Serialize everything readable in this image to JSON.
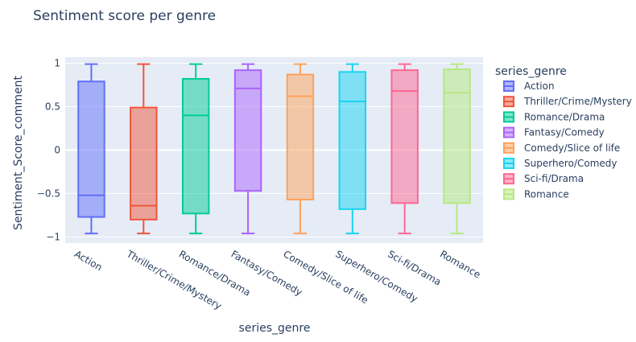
{
  "chart_data": {
    "type": "box",
    "title": "Sentiment score per genre",
    "xlabel": "series_genre",
    "ylabel": "Sentiment_Score_comment",
    "ylim": [
      -1.07,
      1.07
    ],
    "yticks": [
      1,
      0.5,
      0,
      -0.5,
      -1
    ],
    "ytick_labels": [
      "1",
      "0.5",
      "0",
      "−0.5",
      "−1"
    ],
    "grid": true,
    "legend_title": "series_genre",
    "legend_position": "right",
    "series": [
      {
        "name": "Action",
        "color": "#636efa",
        "min": -0.96,
        "q1": -0.77,
        "median": -0.52,
        "q3": 0.79,
        "max": 0.99
      },
      {
        "name": "Thriller/Crime/Mystery",
        "color": "#ef553b",
        "min": -0.96,
        "q1": -0.8,
        "median": -0.64,
        "q3": 0.49,
        "max": 0.99
      },
      {
        "name": "Romance/Drama",
        "color": "#00cc96",
        "min": -0.96,
        "q1": -0.73,
        "median": 0.4,
        "q3": 0.82,
        "max": 0.99
      },
      {
        "name": "Fantasy/Comedy",
        "color": "#ab63fa",
        "min": -0.96,
        "q1": -0.47,
        "median": 0.71,
        "q3": 0.92,
        "max": 0.99
      },
      {
        "name": "Comedy/Slice of life",
        "color": "#ffa15a",
        "min": -0.96,
        "q1": -0.57,
        "median": 0.62,
        "q3": 0.87,
        "max": 0.99
      },
      {
        "name": "Superhero/Comedy",
        "color": "#19d3f3",
        "min": -0.96,
        "q1": -0.68,
        "median": 0.56,
        "q3": 0.9,
        "max": 0.99
      },
      {
        "name": "Sci-fi/Drama",
        "color": "#ff6692",
        "min": -0.96,
        "q1": -0.61,
        "median": 0.68,
        "q3": 0.92,
        "max": 0.99
      },
      {
        "name": "Romance",
        "color": "#b6e880",
        "min": -0.96,
        "q1": -0.61,
        "median": 0.66,
        "q3": 0.93,
        "max": 0.99
      }
    ]
  }
}
